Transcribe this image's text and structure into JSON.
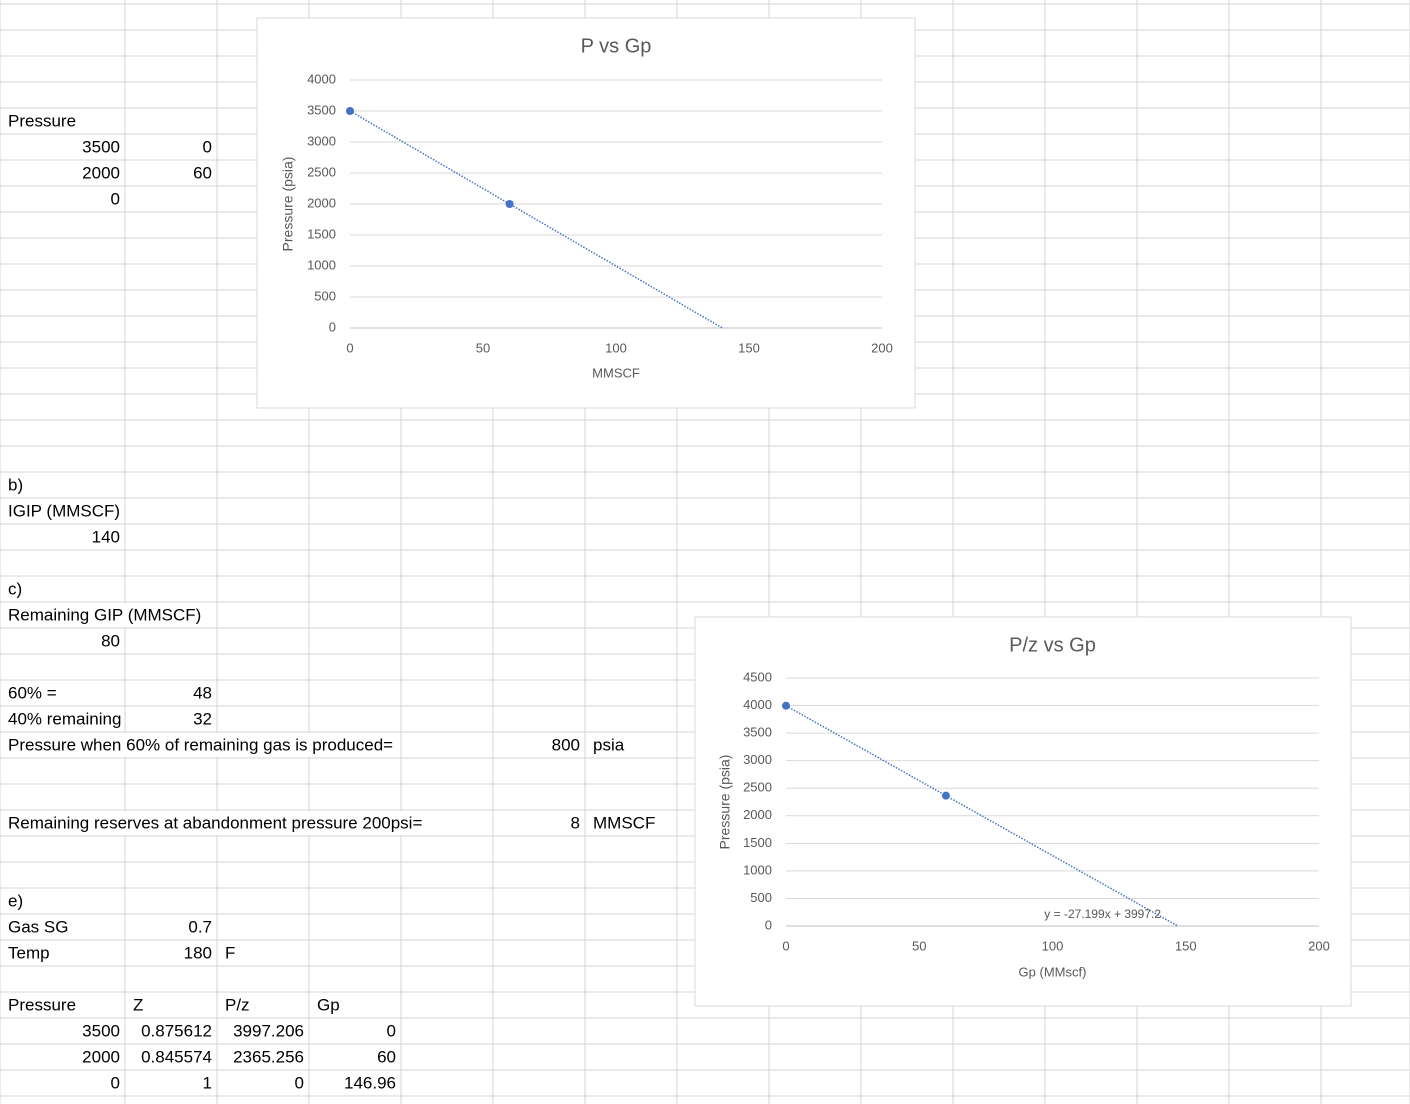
{
  "sheet": {
    "rows": [
      [],
      [],
      [],
      [],
      [
        "Pressure"
      ],
      [
        3500,
        0
      ],
      [
        2000,
        60
      ],
      [
        0
      ],
      [],
      [],
      [],
      [],
      [],
      [],
      [],
      [],
      [],
      [],
      [
        "b)"
      ],
      [
        "IGIP (MMSCF)"
      ],
      [
        140
      ],
      [],
      [
        "c)"
      ],
      [
        "Remaining GIP (MMSCF)"
      ],
      [
        80
      ],
      [],
      [
        "60% =",
        48
      ],
      [
        "40% remaining",
        32
      ],
      [
        "Pressure when 60% of remaining gas is produced=",
        null,
        null,
        null,
        null,
        800,
        "psia"
      ],
      [],
      [],
      [
        "Remaining reserves at abandonment pressure 200psi=",
        null,
        null,
        null,
        null,
        8,
        "MMSCF"
      ],
      [],
      [],
      [
        "e)"
      ],
      [
        "Gas SG",
        0.7
      ],
      [
        "Temp",
        180,
        "F"
      ],
      [],
      [
        "Pressure",
        "Z",
        "P/z",
        "Gp"
      ],
      [
        3500,
        0.875612,
        3997.206,
        0
      ],
      [
        2000,
        0.845574,
        2365.256,
        60
      ],
      [
        0,
        1,
        0,
        146.96
      ]
    ]
  },
  "chart_data": [
    {
      "type": "scatter",
      "title": "P vs Gp",
      "x_label": "MMSCF",
      "y_label": "Pressure (psia)",
      "series": [
        {
          "color": "#4472c4",
          "x": [
            0,
            60
          ],
          "values": [
            3500,
            2000
          ]
        }
      ],
      "trendline": {
        "x": [
          0,
          140
        ],
        "values": [
          3500,
          0
        ],
        "color": "#4472c4"
      },
      "xlim": [
        0,
        200
      ],
      "xticks": [
        0,
        50,
        100,
        150,
        200
      ],
      "ylim": [
        0,
        4000
      ],
      "yticks": [
        0,
        500,
        1000,
        1500,
        2000,
        2500,
        3000,
        3500,
        4000
      ],
      "grid": true
    },
    {
      "type": "scatter",
      "title": "P/z vs Gp",
      "x_label": "Gp (MMscf)",
      "y_label": "Pressure (psia)",
      "series": [
        {
          "color": "#4472c4",
          "x": [
            0,
            60
          ],
          "values": [
            3997.206,
            2365.256
          ]
        }
      ],
      "trendline": {
        "x": [
          0,
          146.96
        ],
        "values": [
          3997.2,
          0
        ],
        "color": "#4472c4",
        "label": "y = -27.199x + 3997.2"
      },
      "xlim": [
        0,
        200
      ],
      "xticks": [
        0,
        50,
        100,
        150,
        200
      ],
      "ylim": [
        0,
        4500
      ],
      "yticks": [
        0,
        500,
        1000,
        1500,
        2000,
        2500,
        3000,
        3500,
        4000,
        4500
      ],
      "grid": true
    }
  ]
}
